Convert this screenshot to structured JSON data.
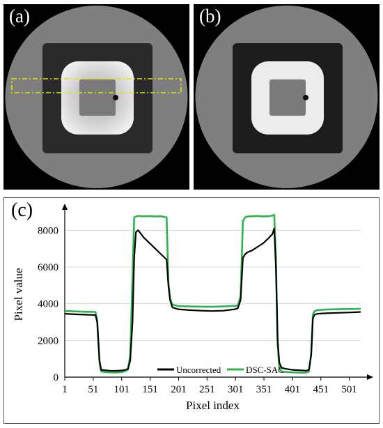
{
  "panels": [
    {
      "label": "(a)"
    },
    {
      "label": "(b)"
    }
  ],
  "chart_data": {
    "panel_label": "(c)",
    "type": "line",
    "xlabel": "Pixel index",
    "ylabel": "Pixel value",
    "xlim": [
      1,
      521
    ],
    "ylim": [
      0,
      9000
    ],
    "xticks": [
      1,
      51,
      101,
      151,
      201,
      251,
      301,
      351,
      401,
      451,
      501
    ],
    "yticks": [
      0,
      2000,
      4000,
      6000,
      8000
    ],
    "grid": "horizontal",
    "legend_position": "bottom-right",
    "colors": {
      "Uncorrected": "#000000",
      "DSC-SAC": "#2db34a"
    },
    "series": [
      {
        "name": "Uncorrected",
        "x": [
          1,
          20,
          40,
          55,
          58,
          62,
          65,
          70,
          80,
          90,
          100,
          105,
          112,
          116,
          120,
          123,
          126,
          130,
          140,
          150,
          160,
          170,
          180,
          183,
          186,
          190,
          200,
          220,
          240,
          260,
          280,
          300,
          305,
          310,
          314,
          318,
          322,
          330,
          340,
          350,
          360,
          366,
          369,
          372,
          375,
          378,
          382,
          390,
          400,
          410,
          420,
          425,
          430,
          434,
          437,
          440,
          445,
          460,
          480,
          500,
          521
        ],
        "y": [
          3450,
          3420,
          3400,
          3380,
          3000,
          900,
          400,
          380,
          350,
          340,
          360,
          380,
          450,
          900,
          3000,
          6500,
          7900,
          8000,
          7600,
          7300,
          7000,
          6700,
          6400,
          5000,
          4200,
          3800,
          3700,
          3650,
          3620,
          3600,
          3620,
          3700,
          3750,
          4200,
          6500,
          6700,
          6800,
          6900,
          7100,
          7300,
          7600,
          7800,
          8100,
          6000,
          2000,
          800,
          500,
          450,
          400,
          380,
          360,
          350,
          400,
          1200,
          3200,
          3400,
          3450,
          3480,
          3500,
          3520,
          3550
        ]
      },
      {
        "name": "DSC-SAC",
        "x": [
          1,
          20,
          40,
          55,
          58,
          62,
          65,
          70,
          80,
          90,
          100,
          105,
          112,
          116,
          120,
          123,
          126,
          130,
          140,
          150,
          160,
          170,
          180,
          183,
          186,
          190,
          200,
          220,
          240,
          260,
          280,
          300,
          305,
          310,
          314,
          318,
          322,
          330,
          340,
          350,
          360,
          366,
          369,
          372,
          375,
          378,
          382,
          390,
          400,
          410,
          420,
          425,
          430,
          434,
          437,
          440,
          445,
          460,
          480,
          500,
          521
        ],
        "y": [
          3600,
          3580,
          3560,
          3550,
          3100,
          800,
          300,
          280,
          260,
          250,
          270,
          300,
          400,
          1200,
          5500,
          8700,
          8750,
          8780,
          8760,
          8770,
          8750,
          8760,
          8700,
          5200,
          4300,
          3950,
          3870,
          3850,
          3840,
          3830,
          3850,
          3880,
          3900,
          4400,
          8500,
          8700,
          8750,
          8760,
          8780,
          8750,
          8770,
          8800,
          8850,
          6500,
          1800,
          500,
          300,
          280,
          260,
          250,
          240,
          250,
          300,
          1300,
          3400,
          3600,
          3650,
          3680,
          3700,
          3710,
          3720
        ]
      }
    ]
  }
}
